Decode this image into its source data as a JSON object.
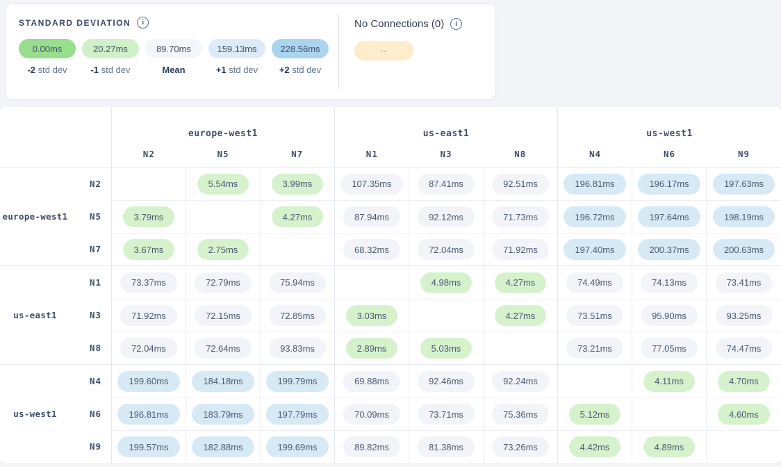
{
  "legend": {
    "title": "STANDARD DEVIATION",
    "items": [
      {
        "value": "0.00ms",
        "label_strong": "-2",
        "label_rest": "std dev",
        "color": "#99de8e"
      },
      {
        "value": "20.27ms",
        "label_strong": "-1",
        "label_rest": "std dev",
        "color": "#d0f1c8"
      },
      {
        "value": "89.70ms",
        "label_strong": "Mean",
        "label_rest": "",
        "color": "#f3f6fa"
      },
      {
        "value": "159.13ms",
        "label_strong": "+1",
        "label_rest": "std dev",
        "color": "#dcebf7"
      },
      {
        "value": "228.56ms",
        "label_strong": "+2",
        "label_rest": "std dev",
        "color": "#aad5f1"
      }
    ],
    "no_connections": {
      "label": "No Connections (0)",
      "pill_text": "--",
      "pill_color": "#fdedca"
    }
  },
  "matrix": {
    "thresholds": {
      "low_max": 20.27,
      "high_min": 159.13
    },
    "cell_colors": {
      "green": "#d6f2cd",
      "mid": "#f2f4f9",
      "blue": "#d8e9f6"
    },
    "col_groups": [
      {
        "region": "europe-west1",
        "nodes": [
          "N2",
          "N5",
          "N7"
        ]
      },
      {
        "region": "us-east1",
        "nodes": [
          "N1",
          "N3",
          "N8"
        ]
      },
      {
        "region": "us-west1",
        "nodes": [
          "N4",
          "N6",
          "N9"
        ]
      }
    ],
    "row_groups": [
      {
        "region": "europe-west1",
        "rows": [
          {
            "node": "N2",
            "values": [
              "",
              "5.54ms",
              "3.99ms",
              "107.35ms",
              "87.41ms",
              "92.51ms",
              "196.81ms",
              "196.17ms",
              "197.63ms"
            ]
          },
          {
            "node": "N5",
            "values": [
              "3.79ms",
              "",
              "4.27ms",
              "87.94ms",
              "92.12ms",
              "71.73ms",
              "196.72ms",
              "197.64ms",
              "198.19ms"
            ]
          },
          {
            "node": "N7",
            "values": [
              "3.67ms",
              "2.75ms",
              "",
              "68.32ms",
              "72.04ms",
              "71.92ms",
              "197.40ms",
              "200.37ms",
              "200.63ms"
            ]
          }
        ]
      },
      {
        "region": "us-east1",
        "rows": [
          {
            "node": "N1",
            "values": [
              "73.37ms",
              "72.79ms",
              "75.94ms",
              "",
              "4.98ms",
              "4.27ms",
              "74.49ms",
              "74.13ms",
              "73.41ms"
            ]
          },
          {
            "node": "N3",
            "values": [
              "71.92ms",
              "72.15ms",
              "72.85ms",
              "3.03ms",
              "",
              "4.27ms",
              "73.51ms",
              "95.90ms",
              "93.25ms"
            ]
          },
          {
            "node": "N8",
            "values": [
              "72.04ms",
              "72.64ms",
              "93.83ms",
              "2.89ms",
              "5.03ms",
              "",
              "73.21ms",
              "77.05ms",
              "74.47ms"
            ]
          }
        ]
      },
      {
        "region": "us-west1",
        "rows": [
          {
            "node": "N4",
            "values": [
              "199.60ms",
              "184.18ms",
              "199.79ms",
              "69.88ms",
              "92.46ms",
              "92.24ms",
              "",
              "4.11ms",
              "4.70ms"
            ]
          },
          {
            "node": "N6",
            "values": [
              "196.81ms",
              "183.79ms",
              "197.79ms",
              "70.09ms",
              "73.71ms",
              "75.36ms",
              "5.12ms",
              "",
              "4.60ms"
            ]
          },
          {
            "node": "N9",
            "values": [
              "199.57ms",
              "182.88ms",
              "199.69ms",
              "89.82ms",
              "81.38ms",
              "73.26ms",
              "4.42ms",
              "4.89ms",
              ""
            ]
          }
        ]
      }
    ]
  }
}
